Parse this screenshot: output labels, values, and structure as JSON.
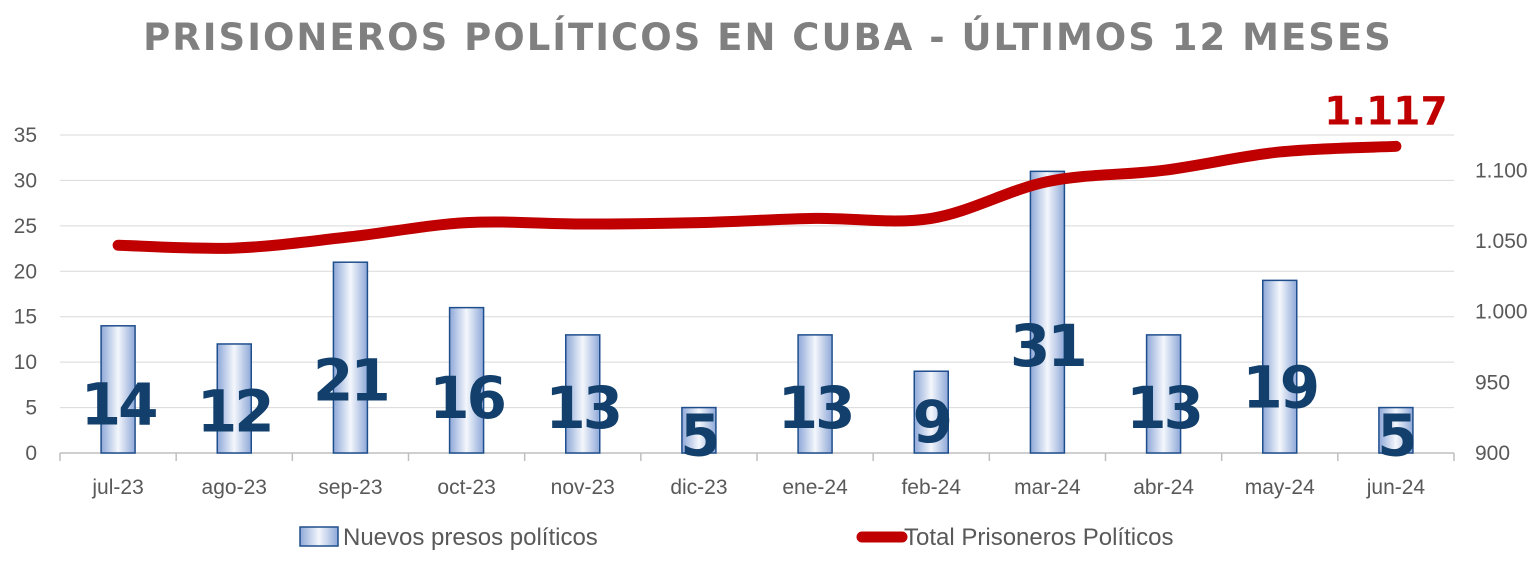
{
  "chart_data": {
    "type": "bar",
    "title": "PRISIONEROS POLÍTICOS EN CUBA - ÚLTIMOS 12 MESES",
    "categories": [
      "jul-23",
      "ago-23",
      "sep-23",
      "oct-23",
      "nov-23",
      "dic-23",
      "ene-24",
      "feb-24",
      "mar-24",
      "abr-24",
      "may-24",
      "jun-24"
    ],
    "series": [
      {
        "name": "Nuevos presos políticos",
        "type": "bar",
        "axis": "left",
        "values": [
          14,
          12,
          21,
          16,
          13,
          5,
          13,
          9,
          31,
          13,
          19,
          5
        ],
        "data_labels": [
          "14",
          "12",
          "21",
          "16",
          "13",
          "5",
          "13",
          "9",
          "31",
          "13",
          "19",
          "5"
        ],
        "color": "#9fb6df"
      },
      {
        "name": "Total Prisoneros Políticos",
        "type": "line",
        "axis": "right",
        "values": [
          1047,
          1045,
          1053,
          1063,
          1062,
          1063,
          1066,
          1066,
          1092,
          1100,
          1113,
          1117
        ],
        "end_label": "1.117",
        "color": "#c00000"
      }
    ],
    "y_left": {
      "ylim": [
        0,
        35
      ],
      "ticks": [
        "0",
        "5",
        "10",
        "15",
        "20",
        "25",
        "30",
        "35"
      ]
    },
    "y_right": {
      "ylim": [
        900,
        1125
      ],
      "ticks": [
        "900",
        "950",
        "1.000",
        "1.050",
        "1.100"
      ]
    },
    "grid": true,
    "legend": "bottom"
  }
}
